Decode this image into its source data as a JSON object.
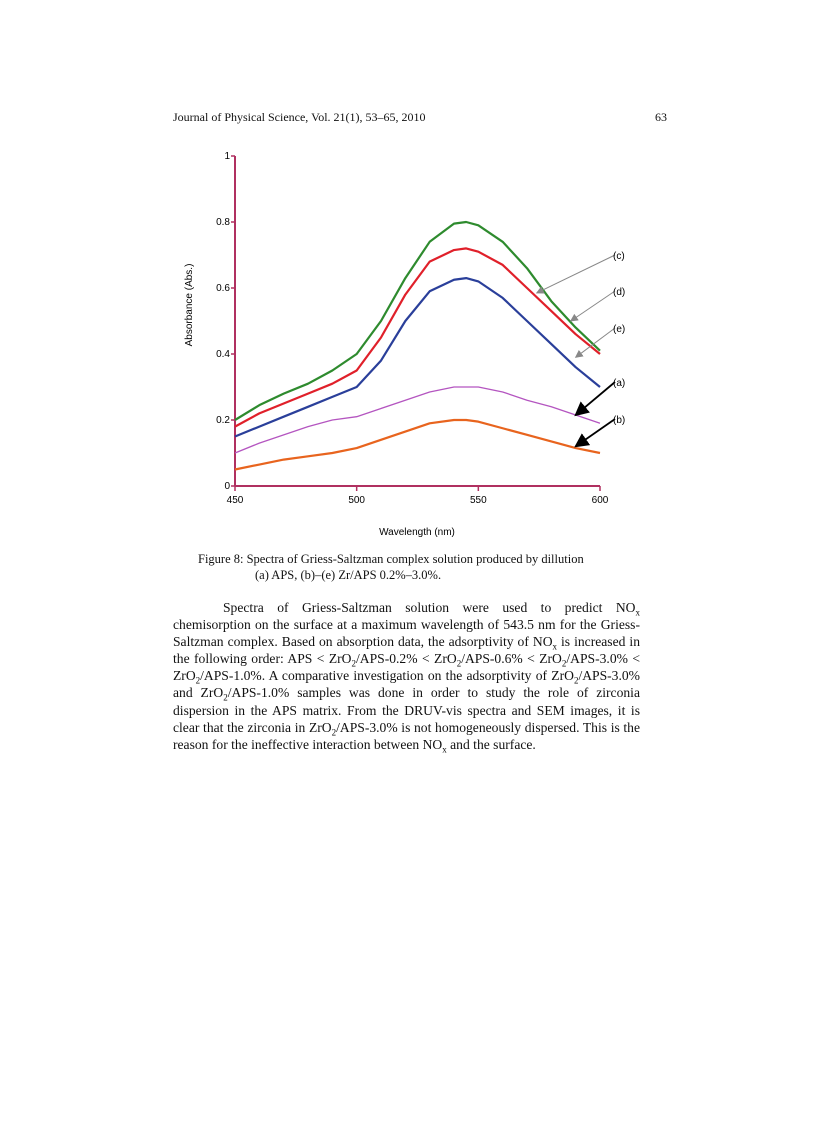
{
  "header": {
    "journal": "Journal of Physical Science, Vol. 21(1), 53–65, 2010",
    "page_number": "63"
  },
  "chart_data": {
    "type": "line",
    "xlabel": "Wavelength (nm)",
    "ylabel": "Absorbance (Abs.)",
    "xlim": [
      450,
      600
    ],
    "ylim": [
      0,
      1
    ],
    "xticks": [
      "450",
      "500",
      "550",
      "600"
    ],
    "yticks": [
      "0",
      "0.2",
      "0.4",
      "0.6",
      "0.8",
      "1"
    ],
    "grid": false,
    "x": [
      450,
      460,
      470,
      480,
      490,
      500,
      510,
      520,
      530,
      540,
      545,
      550,
      560,
      570,
      580,
      590,
      600
    ],
    "series": [
      {
        "name": "(d)",
        "color": "#2e8b2e",
        "values": [
          0.2,
          0.245,
          0.28,
          0.31,
          0.35,
          0.4,
          0.5,
          0.63,
          0.74,
          0.795,
          0.8,
          0.79,
          0.74,
          0.66,
          0.56,
          0.48,
          0.41
        ]
      },
      {
        "name": "(c)",
        "color": "#e0202a",
        "values": [
          0.18,
          0.22,
          0.25,
          0.28,
          0.31,
          0.35,
          0.45,
          0.58,
          0.68,
          0.715,
          0.72,
          0.71,
          0.67,
          0.6,
          0.53,
          0.46,
          0.4
        ]
      },
      {
        "name": "(e)",
        "color": "#2a3f9a",
        "values": [
          0.15,
          0.18,
          0.21,
          0.24,
          0.27,
          0.3,
          0.38,
          0.5,
          0.59,
          0.625,
          0.63,
          0.62,
          0.57,
          0.5,
          0.43,
          0.36,
          0.3
        ]
      },
      {
        "name": "(a)",
        "color": "#b455c0",
        "values": [
          0.1,
          0.13,
          0.155,
          0.18,
          0.2,
          0.21,
          0.235,
          0.26,
          0.285,
          0.3,
          0.3,
          0.3,
          0.285,
          0.26,
          0.24,
          0.215,
          0.19
        ]
      },
      {
        "name": "(b)",
        "color": "#e8641e",
        "values": [
          0.05,
          0.065,
          0.08,
          0.09,
          0.1,
          0.115,
          0.14,
          0.165,
          0.19,
          0.2,
          0.2,
          0.195,
          0.175,
          0.155,
          0.135,
          0.115,
          0.1
        ]
      }
    ],
    "annotations": [
      {
        "text": "(c)",
        "points_to": [
          574,
          0.585
        ],
        "arrow_color": "#888888"
      },
      {
        "text": "(d)",
        "points_to": [
          588,
          0.5
        ],
        "arrow_color": "#888888"
      },
      {
        "text": "(e)",
        "points_to": [
          590,
          0.39
        ],
        "arrow_color": "#888888"
      },
      {
        "text": "(a)",
        "points_to": [
          590,
          0.215
        ],
        "arrow_color": "#000000"
      },
      {
        "text": "(b)",
        "points_to": [
          590,
          0.12
        ],
        "arrow_color": "#000000"
      }
    ],
    "axis_color": "#b03060"
  },
  "caption": {
    "line1": "Figure 8: Spectra of Griess-Saltzman complex solution produced by dillution",
    "line2": "(a) APS, (b)–(e) Zr/APS 0.2%–3.0%."
  },
  "body": {
    "p1": [
      "Spectra of Griess-Saltzman solution were used to predict NO",
      "x",
      " chemisorption on the surface at a maximum wavelength of 543.5 nm for the Griess-Saltzman complex. Based on absorption data, the adsorptivity of NO",
      "x",
      " is increased in the following order: APS < ZrO",
      "2",
      "/APS-0.2% < ZrO",
      "2",
      "/APS-0.6% < ZrO",
      "2",
      "/APS-3.0% < ZrO",
      "2",
      "/APS-1.0%. A comparative investigation on the adsorptivity of ZrO",
      "2",
      "/APS-3.0% and ZrO",
      "2",
      "/APS-1.0% samples was done in order to study the role of zirconia dispersion in the APS matrix. From the DRUV-vis spectra and SEM images, it is clear that the zirconia in ZrO",
      "2",
      "/APS-3.0% is not homogeneously dispersed. This is the reason for the ineffective interaction between NO",
      "x",
      " and the surface."
    ]
  }
}
